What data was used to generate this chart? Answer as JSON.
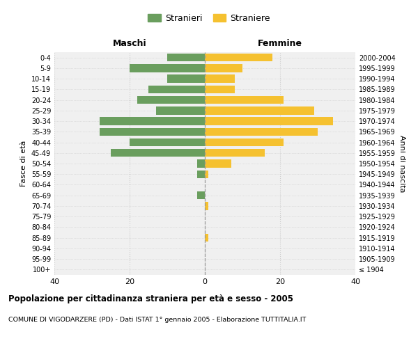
{
  "age_groups": [
    "100+",
    "95-99",
    "90-94",
    "85-89",
    "80-84",
    "75-79",
    "70-74",
    "65-69",
    "60-64",
    "55-59",
    "50-54",
    "45-49",
    "40-44",
    "35-39",
    "30-34",
    "25-29",
    "20-24",
    "15-19",
    "10-14",
    "5-9",
    "0-4"
  ],
  "birth_years": [
    "≤ 1904",
    "1905-1909",
    "1910-1914",
    "1915-1919",
    "1920-1924",
    "1925-1929",
    "1930-1934",
    "1935-1939",
    "1940-1944",
    "1945-1949",
    "1950-1954",
    "1955-1959",
    "1960-1964",
    "1965-1969",
    "1970-1974",
    "1975-1979",
    "1980-1984",
    "1985-1989",
    "1990-1994",
    "1995-1999",
    "2000-2004"
  ],
  "males": [
    0,
    0,
    0,
    0,
    0,
    0,
    0,
    2,
    0,
    2,
    2,
    25,
    20,
    28,
    28,
    13,
    18,
    15,
    10,
    20,
    10
  ],
  "females": [
    0,
    0,
    0,
    1,
    0,
    0,
    1,
    0,
    0,
    1,
    7,
    16,
    21,
    30,
    34,
    29,
    21,
    8,
    8,
    10,
    18
  ],
  "male_color": "#6a9e5e",
  "female_color": "#f5c130",
  "background_color": "#f0f0f0",
  "grid_color": "#cccccc",
  "title": "Popolazione per cittadinanza straniera per età e sesso - 2005",
  "subtitle": "COMUNE DI VIGODARZERE (PD) - Dati ISTAT 1° gennaio 2005 - Elaborazione TUTTITALIA.IT",
  "xlabel_left": "Maschi",
  "xlabel_right": "Femmine",
  "ylabel_left": "Fasce di età",
  "ylabel_right": "Anni di nascita",
  "legend_stranieri": "Stranieri",
  "legend_straniere": "Straniere",
  "xlim": 40
}
